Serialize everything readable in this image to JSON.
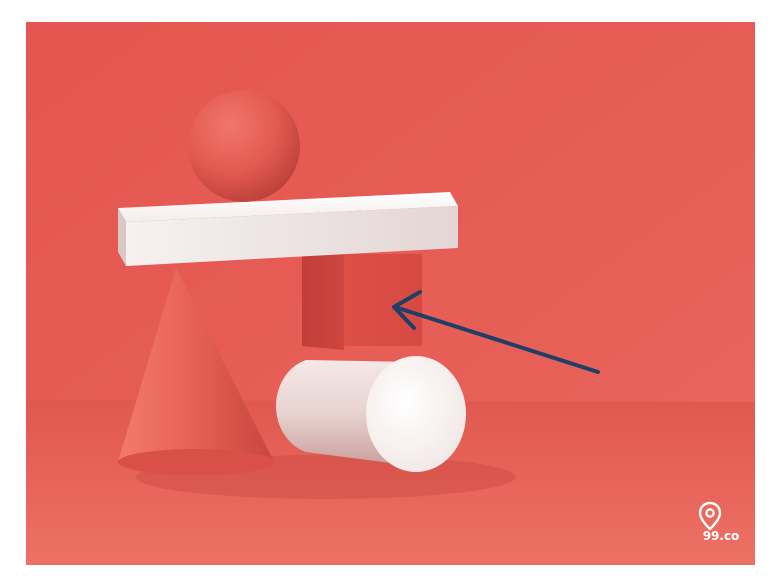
{
  "scene": {
    "background_color": "#e25c55",
    "floor_color": "#e86a62",
    "arrow_color": "#1f3f66"
  },
  "watermark": {
    "brand": "99.co",
    "icon": "location-pin-icon"
  }
}
